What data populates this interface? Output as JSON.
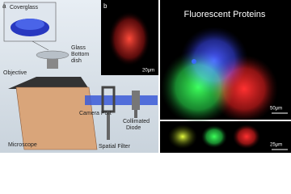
{
  "panel_a": {
    "label": "a",
    "coverglass": "Coverglass",
    "dish": [
      "Glass",
      "Bottom",
      "dish"
    ],
    "objective": "Objective",
    "microscope": "Microscope",
    "camera_port": "Camera Port",
    "spatial_filter": "Spatial Filter",
    "diode": [
      "Collimated",
      "Diode"
    ]
  },
  "panel_b": {
    "label": "b",
    "scale": "20μm"
  },
  "panel_c": {
    "title": "Fluorescent Proteins",
    "scale": "50μm"
  },
  "panel_d": {
    "scale": "25μm"
  }
}
